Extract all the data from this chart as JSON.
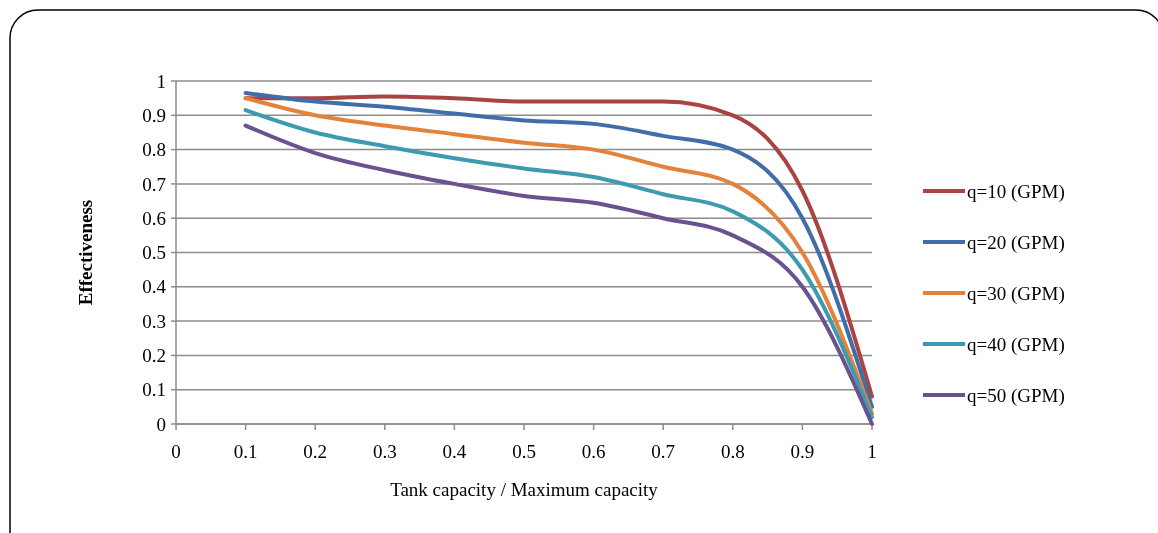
{
  "chart_data": {
    "type": "line",
    "xlabel": "Tank capacity / Maximum capacity",
    "ylabel": "Effectiveness",
    "x": [
      0.1,
      0.2,
      0.3,
      0.4,
      0.5,
      0.6,
      0.7,
      0.8,
      0.9,
      1
    ],
    "xlim": [
      0,
      1
    ],
    "xticks": [
      0,
      0.1,
      0.2,
      0.3,
      0.4,
      0.5,
      0.6,
      0.7,
      0.8,
      0.9,
      1
    ],
    "ylim": [
      0,
      1
    ],
    "yticks": [
      0,
      0.1,
      0.2,
      0.3,
      0.4,
      0.5,
      0.6,
      0.7,
      0.8,
      0.9,
      1
    ],
    "grid": "y",
    "legend": "right",
    "marker": "none",
    "line_style": "solid",
    "series": [
      {
        "name": "q=10 (GPM)",
        "color": "#a94442",
        "values": [
          0.95,
          0.95,
          0.955,
          0.95,
          0.94,
          0.94,
          0.94,
          0.9,
          0.68,
          0.08
        ]
      },
      {
        "name": "q=20 (GPM)",
        "color": "#416ea9",
        "values": [
          0.965,
          0.94,
          0.925,
          0.905,
          0.885,
          0.875,
          0.84,
          0.8,
          0.6,
          0.05
        ]
      },
      {
        "name": "q=30 (GPM)",
        "color": "#e3823a",
        "values": [
          0.95,
          0.9,
          0.87,
          0.845,
          0.82,
          0.8,
          0.75,
          0.7,
          0.5,
          0.03
        ]
      },
      {
        "name": "q=40 (GPM)",
        "color": "#3d9bb0",
        "values": [
          0.915,
          0.85,
          0.81,
          0.775,
          0.745,
          0.72,
          0.67,
          0.62,
          0.45,
          0.02
        ]
      },
      {
        "name": "q=50 (GPM)",
        "color": "#6a528f",
        "values": [
          0.87,
          0.79,
          0.74,
          0.7,
          0.665,
          0.645,
          0.6,
          0.55,
          0.4,
          0.0
        ]
      }
    ]
  }
}
